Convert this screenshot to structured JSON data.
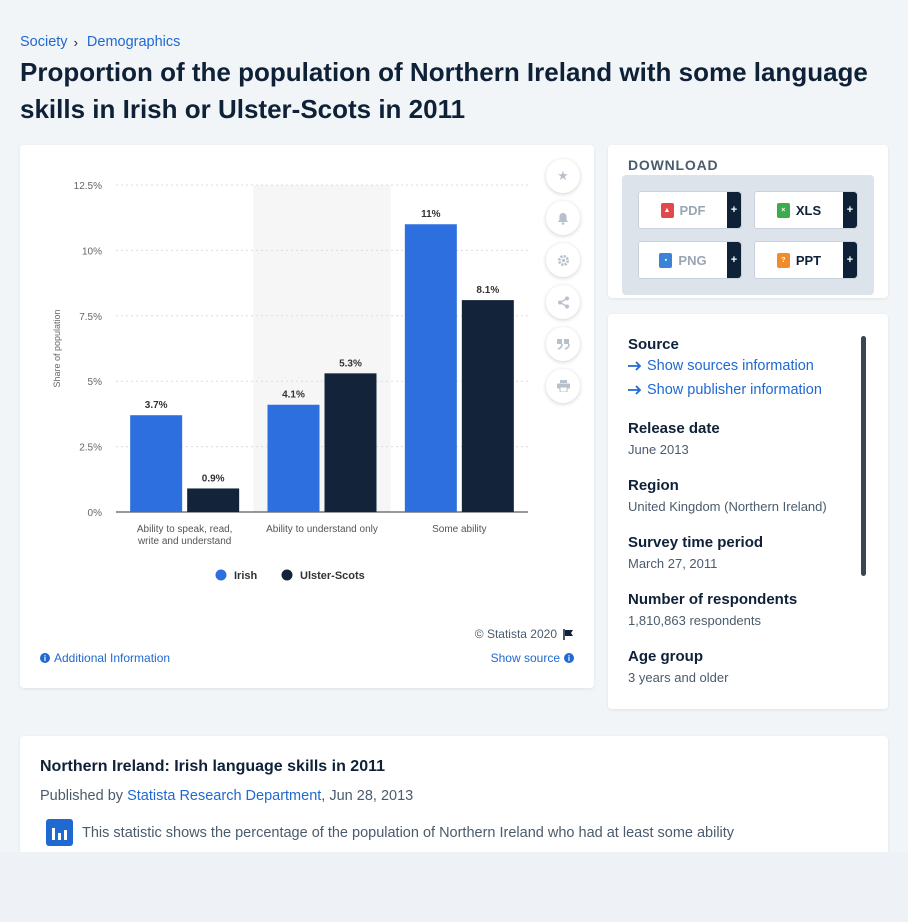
{
  "breadcrumb": [
    "Society",
    "Demographics"
  ],
  "title": "Proportion of the population of Northern Ireland with some language skills in Irish or Ulster-Scots in 2011",
  "chart_data": {
    "type": "bar",
    "categories": [
      "Ability to speak, read, write and understand",
      "Ability to understand only",
      "Some ability"
    ],
    "category_lines": [
      [
        "Ability to speak, read,",
        "write and understand"
      ],
      [
        "Ability to understand only"
      ],
      [
        "Some ability"
      ]
    ],
    "series": [
      {
        "name": "Irish",
        "values": [
          3.7,
          4.1,
          11
        ],
        "labels": [
          "3.7%",
          "4.1%",
          "11%"
        ],
        "color": "#2e6fe0"
      },
      {
        "name": "Ulster-Scots",
        "values": [
          0.9,
          5.3,
          8.1
        ],
        "labels": [
          "0.9%",
          "5.3%",
          "8.1%"
        ],
        "color": "#13243a"
      }
    ],
    "ylabel": "Share of population",
    "ylim": [
      0,
      12.5
    ],
    "yticks": [
      0,
      2.5,
      5,
      7.5,
      10,
      12.5
    ],
    "ytick_labels": [
      "0%",
      "2.5%",
      "5%",
      "7.5%",
      "10%",
      "12.5%"
    ],
    "grid": true,
    "legend": "bottom",
    "highlight_category": 1
  },
  "chart_footer": {
    "copyright": "© Statista 2020",
    "additional_info": "Additional Information",
    "show_source": "Show source"
  },
  "tools": [
    "star-icon",
    "bell-icon",
    "gear-icon",
    "share-icon",
    "quote-icon",
    "print-icon"
  ],
  "download": {
    "title": "DOWNLOAD",
    "buttons": [
      {
        "label": "PDF",
        "icon": "pdf-icon",
        "color": "#e2474c"
      },
      {
        "label": "XLS",
        "icon": "xls-icon",
        "color": "#3cab4b"
      },
      {
        "label": "PNG",
        "icon": "png-icon",
        "color": "#3a83d8"
      },
      {
        "label": "PPT",
        "icon": "ppt-icon",
        "color": "#f08c2a"
      }
    ],
    "plus": "+"
  },
  "source": {
    "heading": "Source",
    "show_sources": "Show sources information",
    "show_publisher": "Show publisher information",
    "fields": [
      {
        "label": "Release date",
        "value": "June 2013"
      },
      {
        "label": "Region",
        "value": "United Kingdom (Northern Ireland)"
      },
      {
        "label": "Survey time period",
        "value": "March 27, 2011"
      },
      {
        "label": "Number of respondents",
        "value": "1,810,863 respondents"
      },
      {
        "label": "Age group",
        "value": "3 years and older"
      }
    ]
  },
  "description": {
    "title": "Northern Ireland: Irish language skills in 2011",
    "published_by": "Published by",
    "publisher": "Statista Research Department",
    "date": ", Jun 28, 2013",
    "text": "This statistic shows the percentage of the population of Northern Ireland who had at least some ability"
  }
}
